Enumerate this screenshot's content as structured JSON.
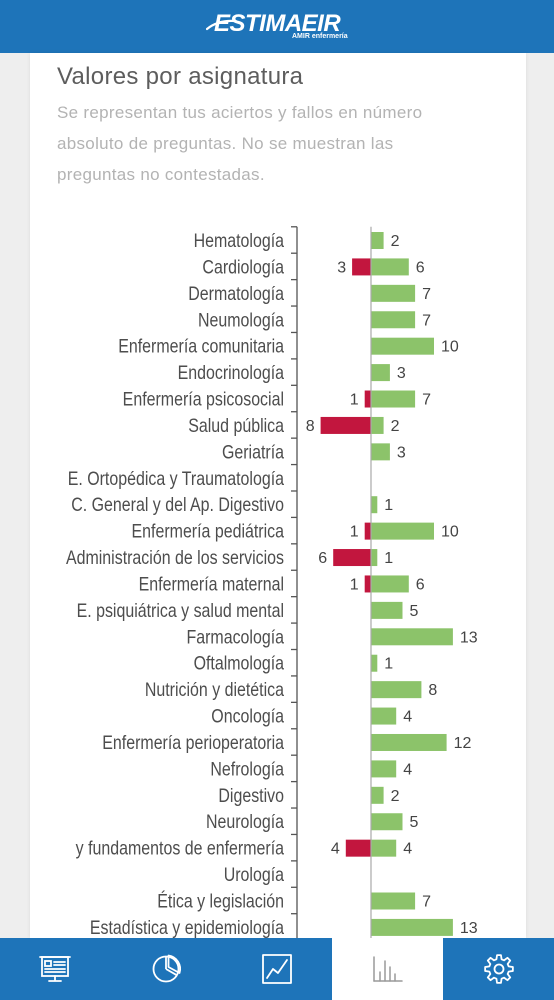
{
  "header": {
    "logo_text_main": "ESTIMA",
    "logo_text_accent": "EIR",
    "logo_sub": "AMIR enfermería"
  },
  "page": {
    "title": "Valores por asignatura",
    "subtitle_lines": [
      "Se representan tus aciertos y fallos en número",
      "absoluto de preguntas. No se muestran las",
      "preguntas no contestadas."
    ]
  },
  "colors": {
    "brand": "#1e74b9",
    "correct_bar": "#8cc36a",
    "wrong_bar": "#c2163e",
    "background": "#eeeeee",
    "card": "#ffffff"
  },
  "chart_data": {
    "type": "bar",
    "orientation": "horizontal",
    "stacking": "diverging",
    "categories": [
      "Hematología",
      "Cardiología",
      "Dermatología",
      "Neumología",
      "Enfermería comunitaria",
      "Endocrinología",
      "Enfermería psicosocial",
      "Salud pública",
      "Geriatría",
      "E. Ortopédica y Traumatología",
      "C. General y del Ap. Digestivo",
      "Enfermería pediátrica",
      "Administración de los servicios",
      "Enfermería maternal",
      "E. psiquiátrica y salud mental",
      "Farmacología",
      "Oftalmología",
      "Nutrición y dietética",
      "Oncología",
      "Enfermería perioperatoria",
      "Nefrología",
      "Digestivo",
      "Neurología",
      "y fundamentos de enfermería",
      "Urología",
      "Ética y legislación",
      "Estadística y epidemiología"
    ],
    "series": [
      {
        "color": "#8cc36a",
        "side": "right",
        "values": [
          2,
          6,
          7,
          7,
          10,
          3,
          7,
          2,
          3,
          0,
          1,
          10,
          1,
          6,
          5,
          13,
          1,
          8,
          4,
          12,
          4,
          2,
          5,
          4,
          0,
          7,
          13
        ]
      },
      {
        "color": "#c2163e",
        "side": "left",
        "values": [
          0,
          3,
          0,
          0,
          0,
          0,
          1,
          8,
          0,
          0,
          0,
          1,
          6,
          1,
          0,
          0,
          0,
          0,
          0,
          0,
          0,
          0,
          0,
          4,
          0,
          0,
          0
        ]
      }
    ],
    "data_labels": true,
    "grid": false,
    "legend": "none"
  },
  "nav": {
    "items": [
      {
        "icon": "presentation-icon"
      },
      {
        "icon": "pie-chart-icon"
      },
      {
        "icon": "line-chart-icon"
      },
      {
        "icon": "bar-chart-icon",
        "active": true
      },
      {
        "icon": "gear-icon"
      }
    ]
  }
}
